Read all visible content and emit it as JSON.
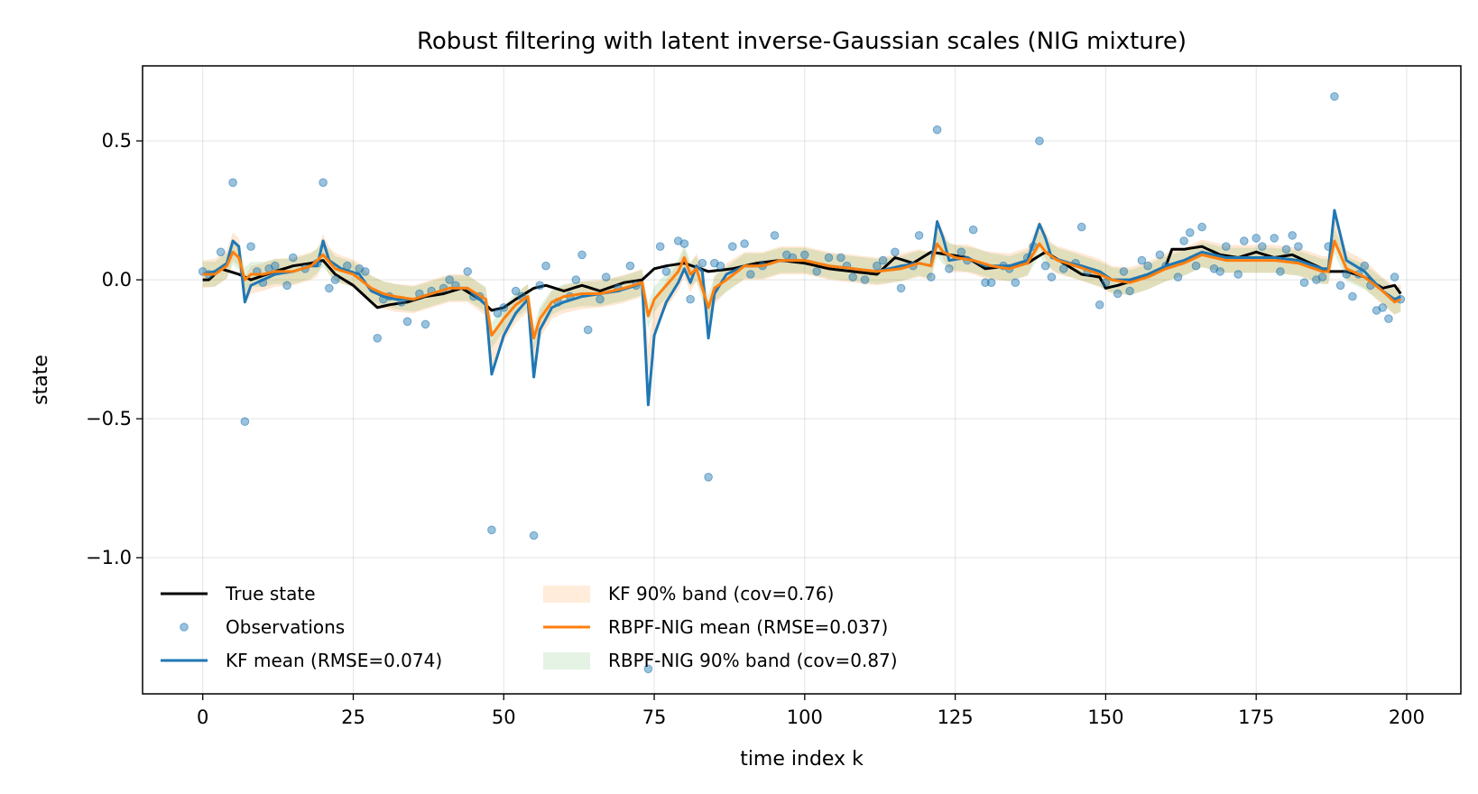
{
  "chart_data": {
    "type": "line",
    "title": "Robust filtering with latent inverse-Gaussian scales (NIG mixture)",
    "xlabel": "time index k",
    "ylabel": "state",
    "xlim": [
      -10,
      209
    ],
    "ylim": [
      -1.49,
      0.77
    ],
    "xticks": [
      0,
      25,
      50,
      75,
      100,
      125,
      150,
      175,
      200
    ],
    "yticks": [
      0.5,
      0.0,
      -0.5,
      -1.0
    ],
    "ytick_labels": [
      "0.5",
      "0.0",
      "−0.5",
      "−1.0"
    ],
    "grid": true,
    "legend_position": "lower-left",
    "legend": [
      {
        "label": "True state",
        "type": "line",
        "color": "#000000"
      },
      {
        "label": "Observations",
        "type": "scatter",
        "color": "#1f77b4"
      },
      {
        "label": "KF mean (RMSE=0.074)",
        "type": "line",
        "color": "#1f77b4"
      },
      {
        "label": "KF 90% band (cov=0.76)",
        "type": "band",
        "color": "#ff7f0e"
      },
      {
        "label": "RBPF-NIG mean (RMSE=0.037)",
        "type": "line",
        "color": "#ff7f0e"
      },
      {
        "label": "RBPF-NIG 90% band (cov=0.87)",
        "type": "band",
        "color": "#2ca02c"
      }
    ],
    "colors": {
      "true_state": "#000000",
      "observations": "#1f77b4",
      "kf_mean": "#1f77b4",
      "kf_band": "#ff7f0e",
      "rbpf_mean": "#ff7f0e",
      "rbpf_band": "#2ca02c"
    },
    "band_halfwidth": {
      "kf": 0.05,
      "rbpf": 0.045
    },
    "true_state_anchors": [
      [
        0,
        0.0
      ],
      [
        1,
        0.0
      ],
      [
        3,
        0.04
      ],
      [
        6,
        0.02
      ],
      [
        8,
        0.0
      ],
      [
        12,
        0.03
      ],
      [
        15,
        0.05
      ],
      [
        18,
        0.06
      ],
      [
        20,
        0.07
      ],
      [
        22,
        0.02
      ],
      [
        25,
        -0.02
      ],
      [
        27,
        -0.06
      ],
      [
        29,
        -0.1
      ],
      [
        31,
        -0.09
      ],
      [
        34,
        -0.08
      ],
      [
        37,
        -0.06
      ],
      [
        40,
        -0.05
      ],
      [
        43,
        -0.03
      ],
      [
        46,
        -0.07
      ],
      [
        48,
        -0.11
      ],
      [
        50,
        -0.1
      ],
      [
        52,
        -0.07
      ],
      [
        55,
        -0.03
      ],
      [
        57,
        -0.02
      ],
      [
        60,
        -0.04
      ],
      [
        63,
        -0.02
      ],
      [
        66,
        -0.04
      ],
      [
        70,
        -0.01
      ],
      [
        73,
        0.0
      ],
      [
        75,
        0.04
      ],
      [
        77,
        0.05
      ],
      [
        80,
        0.06
      ],
      [
        84,
        0.03
      ],
      [
        88,
        0.04
      ],
      [
        92,
        0.06
      ],
      [
        96,
        0.07
      ],
      [
        100,
        0.06
      ],
      [
        104,
        0.04
      ],
      [
        108,
        0.03
      ],
      [
        112,
        0.02
      ],
      [
        115,
        0.08
      ],
      [
        118,
        0.06
      ],
      [
        121,
        0.1
      ],
      [
        124,
        0.09
      ],
      [
        127,
        0.08
      ],
      [
        130,
        0.04
      ],
      [
        134,
        0.05
      ],
      [
        137,
        0.06
      ],
      [
        140,
        0.1
      ],
      [
        143,
        0.06
      ],
      [
        146,
        0.02
      ],
      [
        149,
        0.01
      ],
      [
        150,
        -0.03
      ],
      [
        152,
        -0.02
      ],
      [
        155,
        0.0
      ],
      [
        158,
        0.02
      ],
      [
        160,
        0.05
      ],
      [
        161,
        0.11
      ],
      [
        163,
        0.11
      ],
      [
        166,
        0.12
      ],
      [
        169,
        0.09
      ],
      [
        172,
        0.08
      ],
      [
        175,
        0.1
      ],
      [
        178,
        0.08
      ],
      [
        181,
        0.09
      ],
      [
        184,
        0.06
      ],
      [
        187,
        0.03
      ],
      [
        190,
        0.03
      ],
      [
        193,
        0.01
      ],
      [
        196,
        -0.03
      ],
      [
        198,
        -0.02
      ],
      [
        199,
        -0.05
      ]
    ],
    "kf_mean_anchors": [
      [
        0,
        0.02
      ],
      [
        2,
        0.03
      ],
      [
        4,
        0.06
      ],
      [
        5,
        0.14
      ],
      [
        6,
        0.12
      ],
      [
        7,
        -0.08
      ],
      [
        8,
        -0.02
      ],
      [
        10,
        0.0
      ],
      [
        12,
        0.02
      ],
      [
        15,
        0.03
      ],
      [
        18,
        0.05
      ],
      [
        19,
        0.05
      ],
      [
        20,
        0.14
      ],
      [
        21,
        0.07
      ],
      [
        23,
        0.04
      ],
      [
        26,
        0.02
      ],
      [
        28,
        -0.04
      ],
      [
        30,
        -0.06
      ],
      [
        32,
        -0.07
      ],
      [
        35,
        -0.07
      ],
      [
        38,
        -0.05
      ],
      [
        41,
        -0.03
      ],
      [
        44,
        -0.03
      ],
      [
        47,
        -0.09
      ],
      [
        48,
        -0.34
      ],
      [
        50,
        -0.2
      ],
      [
        52,
        -0.12
      ],
      [
        54,
        -0.07
      ],
      [
        55,
        -0.35
      ],
      [
        56,
        -0.18
      ],
      [
        58,
        -0.1
      ],
      [
        60,
        -0.08
      ],
      [
        63,
        -0.06
      ],
      [
        66,
        -0.05
      ],
      [
        69,
        -0.04
      ],
      [
        72,
        -0.02
      ],
      [
        73,
        -0.01
      ],
      [
        74,
        -0.45
      ],
      [
        75,
        -0.2
      ],
      [
        77,
        -0.08
      ],
      [
        79,
        -0.01
      ],
      [
        80,
        0.04
      ],
      [
        81,
        -0.01
      ],
      [
        82,
        0.05
      ],
      [
        83,
        0.03
      ],
      [
        84,
        -0.21
      ],
      [
        85,
        -0.05
      ],
      [
        87,
        0.02
      ],
      [
        90,
        0.05
      ],
      [
        93,
        0.05
      ],
      [
        96,
        0.07
      ],
      [
        100,
        0.07
      ],
      [
        104,
        0.05
      ],
      [
        108,
        0.04
      ],
      [
        112,
        0.03
      ],
      [
        116,
        0.05
      ],
      [
        119,
        0.06
      ],
      [
        121,
        0.05
      ],
      [
        122,
        0.21
      ],
      [
        123,
        0.15
      ],
      [
        124,
        0.07
      ],
      [
        127,
        0.08
      ],
      [
        130,
        0.05
      ],
      [
        134,
        0.05
      ],
      [
        137,
        0.07
      ],
      [
        139,
        0.2
      ],
      [
        140,
        0.15
      ],
      [
        141,
        0.08
      ],
      [
        144,
        0.06
      ],
      [
        146,
        0.05
      ],
      [
        149,
        0.03
      ],
      [
        151,
        0.0
      ],
      [
        154,
        0.0
      ],
      [
        157,
        0.02
      ],
      [
        160,
        0.05
      ],
      [
        163,
        0.07
      ],
      [
        166,
        0.1
      ],
      [
        170,
        0.08
      ],
      [
        174,
        0.08
      ],
      [
        178,
        0.08
      ],
      [
        182,
        0.07
      ],
      [
        186,
        0.04
      ],
      [
        187,
        0.04
      ],
      [
        188,
        0.25
      ],
      [
        189,
        0.16
      ],
      [
        190,
        0.07
      ],
      [
        193,
        0.03
      ],
      [
        196,
        -0.04
      ],
      [
        198,
        -0.07
      ],
      [
        199,
        -0.06
      ]
    ],
    "rbpf_mean_anchors": [
      [
        0,
        0.02
      ],
      [
        2,
        0.02
      ],
      [
        4,
        0.05
      ],
      [
        5,
        0.1
      ],
      [
        6,
        0.08
      ],
      [
        7,
        0.0
      ],
      [
        8,
        0.02
      ],
      [
        10,
        0.02
      ],
      [
        12,
        0.03
      ],
      [
        15,
        0.03
      ],
      [
        18,
        0.05
      ],
      [
        20,
        0.09
      ],
      [
        22,
        0.04
      ],
      [
        25,
        0.02
      ],
      [
        28,
        -0.03
      ],
      [
        30,
        -0.05
      ],
      [
        32,
        -0.06
      ],
      [
        35,
        -0.07
      ],
      [
        38,
        -0.05
      ],
      [
        41,
        -0.03
      ],
      [
        44,
        -0.03
      ],
      [
        47,
        -0.07
      ],
      [
        48,
        -0.2
      ],
      [
        50,
        -0.14
      ],
      [
        52,
        -0.09
      ],
      [
        54,
        -0.06
      ],
      [
        55,
        -0.21
      ],
      [
        56,
        -0.14
      ],
      [
        58,
        -0.08
      ],
      [
        60,
        -0.06
      ],
      [
        63,
        -0.05
      ],
      [
        66,
        -0.05
      ],
      [
        70,
        -0.03
      ],
      [
        73,
        -0.01
      ],
      [
        74,
        -0.13
      ],
      [
        75,
        -0.07
      ],
      [
        77,
        -0.02
      ],
      [
        79,
        0.03
      ],
      [
        80,
        0.08
      ],
      [
        81,
        0.02
      ],
      [
        82,
        0.04
      ],
      [
        84,
        -0.1
      ],
      [
        85,
        -0.03
      ],
      [
        87,
        0.0
      ],
      [
        90,
        0.05
      ],
      [
        93,
        0.05
      ],
      [
        96,
        0.07
      ],
      [
        100,
        0.07
      ],
      [
        104,
        0.05
      ],
      [
        108,
        0.04
      ],
      [
        112,
        0.03
      ],
      [
        116,
        0.04
      ],
      [
        119,
        0.06
      ],
      [
        121,
        0.05
      ],
      [
        122,
        0.13
      ],
      [
        123,
        0.1
      ],
      [
        125,
        0.08
      ],
      [
        128,
        0.07
      ],
      [
        131,
        0.05
      ],
      [
        134,
        0.04
      ],
      [
        137,
        0.06
      ],
      [
        139,
        0.13
      ],
      [
        140,
        0.1
      ],
      [
        142,
        0.07
      ],
      [
        145,
        0.05
      ],
      [
        149,
        0.02
      ],
      [
        151,
        0.0
      ],
      [
        154,
        -0.01
      ],
      [
        157,
        0.01
      ],
      [
        160,
        0.04
      ],
      [
        163,
        0.06
      ],
      [
        166,
        0.09
      ],
      [
        170,
        0.07
      ],
      [
        174,
        0.07
      ],
      [
        178,
        0.07
      ],
      [
        182,
        0.06
      ],
      [
        186,
        0.03
      ],
      [
        187,
        0.03
      ],
      [
        188,
        0.14
      ],
      [
        189,
        0.09
      ],
      [
        190,
        0.04
      ],
      [
        193,
        0.01
      ],
      [
        196,
        -0.04
      ],
      [
        198,
        -0.08
      ],
      [
        199,
        -0.07
      ]
    ],
    "observations": [
      [
        0,
        0.03
      ],
      [
        1,
        0.02
      ],
      [
        3,
        0.1
      ],
      [
        5,
        0.35
      ],
      [
        7,
        -0.51
      ],
      [
        8,
        0.12
      ],
      [
        9,
        0.03
      ],
      [
        10,
        -0.01
      ],
      [
        11,
        0.04
      ],
      [
        12,
        0.05
      ],
      [
        14,
        -0.02
      ],
      [
        15,
        0.08
      ],
      [
        17,
        0.04
      ],
      [
        19,
        0.06
      ],
      [
        20,
        0.35
      ],
      [
        21,
        -0.03
      ],
      [
        22,
        0.0
      ],
      [
        24,
        0.05
      ],
      [
        26,
        0.04
      ],
      [
        27,
        0.03
      ],
      [
        29,
        -0.21
      ],
      [
        30,
        -0.07
      ],
      [
        31,
        -0.06
      ],
      [
        33,
        -0.08
      ],
      [
        34,
        -0.15
      ],
      [
        36,
        -0.05
      ],
      [
        37,
        -0.16
      ],
      [
        38,
        -0.04
      ],
      [
        40,
        -0.03
      ],
      [
        41,
        0.0
      ],
      [
        42,
        -0.02
      ],
      [
        44,
        0.03
      ],
      [
        45,
        -0.06
      ],
      [
        46,
        -0.06
      ],
      [
        48,
        -0.9
      ],
      [
        49,
        -0.12
      ],
      [
        50,
        -0.1
      ],
      [
        52,
        -0.04
      ],
      [
        53,
        -0.06
      ],
      [
        55,
        -0.92
      ],
      [
        56,
        -0.02
      ],
      [
        57,
        0.05
      ],
      [
        59,
        -0.08
      ],
      [
        61,
        -0.06
      ],
      [
        62,
        0.0
      ],
      [
        63,
        0.09
      ],
      [
        64,
        -0.18
      ],
      [
        66,
        -0.07
      ],
      [
        67,
        0.01
      ],
      [
        69,
        -0.03
      ],
      [
        71,
        0.05
      ],
      [
        72,
        -0.02
      ],
      [
        74,
        -1.4
      ],
      [
        76,
        0.12
      ],
      [
        77,
        0.03
      ],
      [
        79,
        0.14
      ],
      [
        80,
        0.13
      ],
      [
        81,
        -0.07
      ],
      [
        83,
        0.06
      ],
      [
        84,
        -0.71
      ],
      [
        85,
        0.06
      ],
      [
        86,
        0.05
      ],
      [
        88,
        0.12
      ],
      [
        90,
        0.13
      ],
      [
        91,
        0.02
      ],
      [
        93,
        0.05
      ],
      [
        95,
        0.16
      ],
      [
        97,
        0.09
      ],
      [
        98,
        0.08
      ],
      [
        100,
        0.09
      ],
      [
        102,
        0.03
      ],
      [
        104,
        0.08
      ],
      [
        106,
        0.08
      ],
      [
        107,
        0.05
      ],
      [
        108,
        0.01
      ],
      [
        110,
        0.0
      ],
      [
        112,
        0.05
      ],
      [
        113,
        0.07
      ],
      [
        115,
        0.1
      ],
      [
        116,
        -0.03
      ],
      [
        118,
        0.05
      ],
      [
        119,
        0.16
      ],
      [
        121,
        0.01
      ],
      [
        122,
        0.54
      ],
      [
        124,
        0.04
      ],
      [
        126,
        0.1
      ],
      [
        127,
        0.07
      ],
      [
        128,
        0.18
      ],
      [
        130,
        -0.01
      ],
      [
        131,
        -0.01
      ],
      [
        133,
        0.05
      ],
      [
        134,
        0.04
      ],
      [
        135,
        -0.01
      ],
      [
        137,
        0.08
      ],
      [
        138,
        0.12
      ],
      [
        139,
        0.5
      ],
      [
        140,
        0.05
      ],
      [
        141,
        0.01
      ],
      [
        143,
        0.04
      ],
      [
        145,
        0.06
      ],
      [
        146,
        0.19
      ],
      [
        147,
        0.03
      ],
      [
        149,
        -0.09
      ],
      [
        150,
        -0.01
      ],
      [
        152,
        -0.05
      ],
      [
        153,
        0.03
      ],
      [
        154,
        -0.04
      ],
      [
        156,
        0.07
      ],
      [
        157,
        0.05
      ],
      [
        159,
        0.09
      ],
      [
        160,
        0.05
      ],
      [
        162,
        0.01
      ],
      [
        163,
        0.14
      ],
      [
        164,
        0.17
      ],
      [
        165,
        0.05
      ],
      [
        166,
        0.19
      ],
      [
        168,
        0.04
      ],
      [
        169,
        0.03
      ],
      [
        170,
        0.12
      ],
      [
        172,
        0.02
      ],
      [
        173,
        0.14
      ],
      [
        175,
        0.15
      ],
      [
        176,
        0.12
      ],
      [
        178,
        0.15
      ],
      [
        179,
        0.03
      ],
      [
        180,
        0.11
      ],
      [
        181,
        0.16
      ],
      [
        182,
        0.12
      ],
      [
        183,
        -0.01
      ],
      [
        185,
        0.0
      ],
      [
        186,
        0.01
      ],
      [
        187,
        0.12
      ],
      [
        188,
        0.66
      ],
      [
        189,
        -0.02
      ],
      [
        190,
        0.02
      ],
      [
        191,
        -0.06
      ],
      [
        192,
        0.02
      ],
      [
        193,
        0.05
      ],
      [
        194,
        -0.02
      ],
      [
        195,
        -0.11
      ],
      [
        196,
        -0.1
      ],
      [
        197,
        -0.14
      ],
      [
        198,
        0.01
      ],
      [
        199,
        -0.07
      ]
    ]
  }
}
